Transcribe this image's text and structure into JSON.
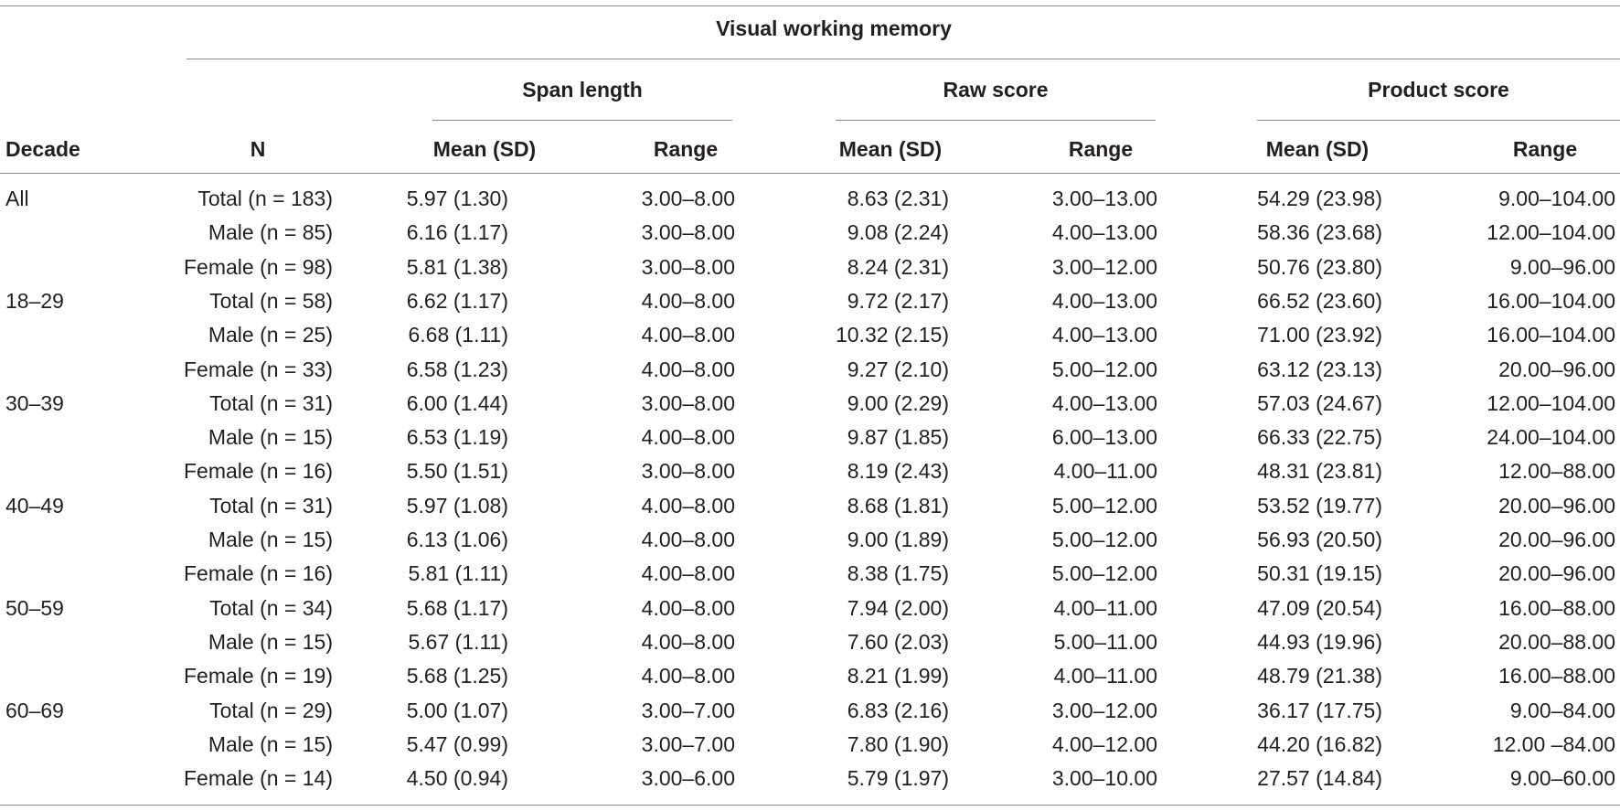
{
  "table": {
    "group_header": "Visual working memory",
    "subgroups": [
      "Span length",
      "Raw score",
      "Product score"
    ],
    "columns": [
      "Decade",
      "N",
      "Mean (SD)",
      "Range",
      "Mean (SD)",
      "Range",
      "Mean (SD)",
      "Range"
    ],
    "rows": [
      [
        "All",
        "Total (n = 183)",
        "5.97 (1.30)",
        "3.00–8.00",
        "8.63 (2.31)",
        "3.00–13.00",
        "54.29 (23.98)",
        "9.00–104.00"
      ],
      [
        "",
        "Male (n = 85)",
        "6.16 (1.17)",
        "3.00–8.00",
        "9.08 (2.24)",
        "4.00–13.00",
        "58.36 (23.68)",
        "12.00–104.00"
      ],
      [
        "",
        "Female (n = 98)",
        "5.81 (1.38)",
        "3.00–8.00",
        "8.24 (2.31)",
        "3.00–12.00",
        "50.76 (23.80)",
        "9.00–96.00"
      ],
      [
        "18–29",
        "Total (n = 58)",
        "6.62 (1.17)",
        "4.00–8.00",
        "9.72 (2.17)",
        "4.00–13.00",
        "66.52 (23.60)",
        "16.00–104.00"
      ],
      [
        "",
        "Male (n = 25)",
        "6.68 (1.11)",
        "4.00–8.00",
        "10.32 (2.15)",
        "4.00–13.00",
        "71.00 (23.92)",
        "16.00–104.00"
      ],
      [
        "",
        "Female (n = 33)",
        "6.58 (1.23)",
        "4.00–8.00",
        "9.27 (2.10)",
        "5.00–12.00",
        "63.12 (23.13)",
        "20.00–96.00"
      ],
      [
        "30–39",
        "Total (n = 31)",
        "6.00 (1.44)",
        "3.00–8.00",
        "9.00 (2.29)",
        "4.00–13.00",
        "57.03 (24.67)",
        "12.00–104.00"
      ],
      [
        "",
        "Male (n = 15)",
        "6.53 (1.19)",
        "4.00–8.00",
        "9.87 (1.85)",
        "6.00–13.00",
        "66.33 (22.75)",
        "24.00–104.00"
      ],
      [
        "",
        "Female (n = 16)",
        "5.50 (1.51)",
        "3.00–8.00",
        "8.19 (2.43)",
        "4.00–11.00",
        "48.31 (23.81)",
        "12.00–88.00"
      ],
      [
        "40–49",
        "Total (n = 31)",
        "5.97 (1.08)",
        "4.00–8.00",
        "8.68 (1.81)",
        "5.00–12.00",
        "53.52 (19.77)",
        "20.00–96.00"
      ],
      [
        "",
        "Male (n = 15)",
        "6.13 (1.06)",
        "4.00–8.00",
        "9.00 (1.89)",
        "5.00–12.00",
        "56.93 (20.50)",
        "20.00–96.00"
      ],
      [
        "",
        "Female (n = 16)",
        "5.81 (1.11)",
        "4.00–8.00",
        "8.38 (1.75)",
        "5.00–12.00",
        "50.31 (19.15)",
        "20.00–96.00"
      ],
      [
        "50–59",
        "Total (n = 34)",
        "5.68 (1.17)",
        "4.00–8.00",
        "7.94 (2.00)",
        "4.00–11.00",
        "47.09 (20.54)",
        "16.00–88.00"
      ],
      [
        "",
        "Male (n = 15)",
        "5.67 (1.11)",
        "4.00–8.00",
        "7.60 (2.03)",
        "5.00–11.00",
        "44.93 (19.96)",
        "20.00–88.00"
      ],
      [
        "",
        "Female (n = 19)",
        "5.68 (1.25)",
        "4.00–8.00",
        "8.21 (1.99)",
        "4.00–11.00",
        "48.79 (21.38)",
        "16.00–88.00"
      ],
      [
        "60–69",
        "Total (n = 29)",
        "5.00 (1.07)",
        "3.00–7.00",
        "6.83 (2.16)",
        "3.00–12.00",
        "36.17 (17.75)",
        "9.00–84.00"
      ],
      [
        "",
        "Male (n = 15)",
        "5.47 (0.99)",
        "3.00–7.00",
        "7.80 (1.90)",
        "4.00–12.00",
        "44.20 (16.82)",
        "12.00 –84.00"
      ],
      [
        "",
        "Female (n = 14)",
        "4.50 (0.94)",
        "3.00–6.00",
        "5.79 (1.97)",
        "3.00–10.00",
        "27.57 (14.84)",
        "9.00–60.00"
      ]
    ]
  }
}
